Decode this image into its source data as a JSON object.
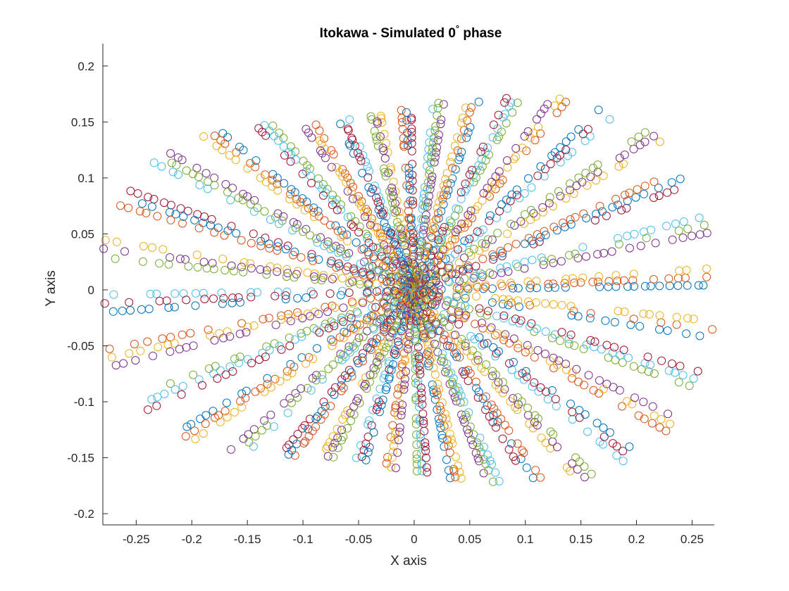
{
  "chart_data": {
    "type": "scatter",
    "title": "Itokawa - Simulated 0",
    "title_degree": "°",
    "title_suffix": " phase",
    "xlabel": "X axis",
    "ylabel": "Y axis",
    "xlim": [
      -0.28,
      0.27
    ],
    "ylim": [
      -0.21,
      0.22
    ],
    "xticks": [
      -0.25,
      -0.2,
      -0.15,
      -0.1,
      -0.05,
      0,
      0.05,
      0.1,
      0.15,
      0.2,
      0.25
    ],
    "xtick_labels": [
      "-0.25",
      "-0.2",
      "-0.15",
      "-0.1",
      "-0.05",
      "0",
      "0.05",
      "0.1",
      "0.15",
      "0.2",
      "0.25"
    ],
    "yticks": [
      -0.2,
      -0.15,
      -0.1,
      -0.05,
      0,
      0.05,
      0.1,
      0.15,
      0.2
    ],
    "ytick_labels": [
      "-0.2",
      "-0.15",
      "-0.1",
      "-0.05",
      "0",
      "0.05",
      "0.1",
      "0.15",
      "0.2"
    ],
    "grid": false,
    "marker": "open-circle",
    "colors": [
      "#0072BD",
      "#D95319",
      "#EDB120",
      "#7E2F8E",
      "#77AC30",
      "#4DBEEE",
      "#A2142F"
    ],
    "ray_count": 36,
    "points_per_ray": 34,
    "radius_profile": [
      {
        "angle_deg": 0,
        "r": 0.27
      },
      {
        "angle_deg": 10,
        "r": 0.27
      },
      {
        "angle_deg": 20,
        "r": 0.26
      },
      {
        "angle_deg": 30,
        "r": 0.26
      },
      {
        "angle_deg": 40,
        "r": 0.24
      },
      {
        "angle_deg": 50,
        "r": 0.22
      },
      {
        "angle_deg": 60,
        "r": 0.2
      },
      {
        "angle_deg": 70,
        "r": 0.18
      },
      {
        "angle_deg": 80,
        "r": 0.17
      },
      {
        "angle_deg": 90,
        "r": 0.16
      },
      {
        "angle_deg": 100,
        "r": 0.16
      },
      {
        "angle_deg": 110,
        "r": 0.16
      },
      {
        "angle_deg": 120,
        "r": 0.17
      },
      {
        "angle_deg": 130,
        "r": 0.19
      },
      {
        "angle_deg": 140,
        "r": 0.22
      },
      {
        "angle_deg": 150,
        "r": 0.25
      },
      {
        "angle_deg": 160,
        "r": 0.27
      },
      {
        "angle_deg": 170,
        "r": 0.28
      },
      {
        "angle_deg": 180,
        "r": 0.28
      }
    ]
  }
}
